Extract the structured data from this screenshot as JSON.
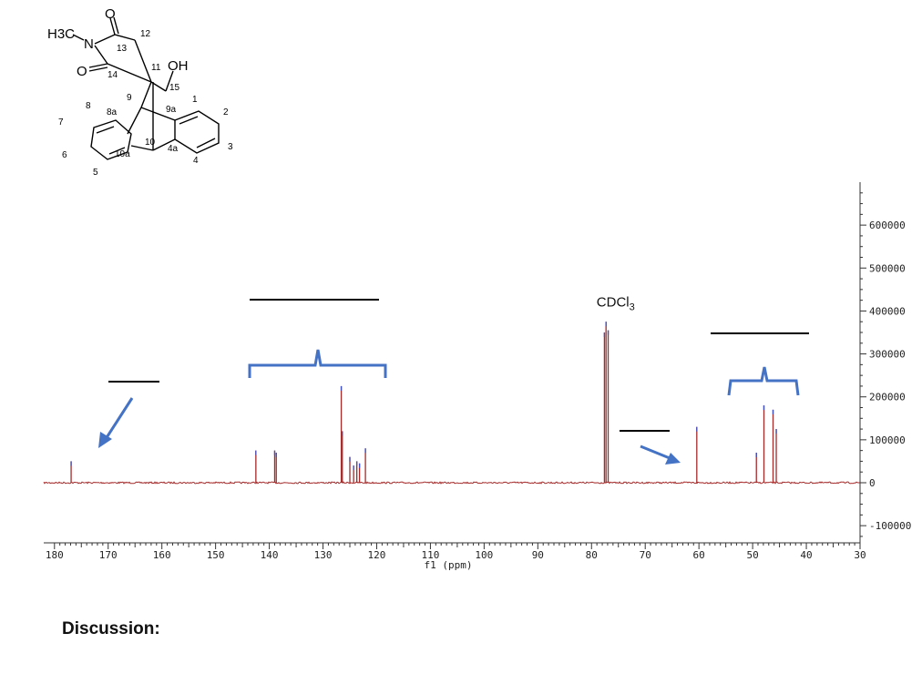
{
  "structure": {
    "methyl": "H3C",
    "nitrogen": "N",
    "oxygen_top": "O",
    "oxygen_left": "O",
    "hydroxyl": "OH",
    "atom_labels": [
      "12",
      "13",
      "11",
      "14",
      "15",
      "1",
      "9",
      "9a",
      "8",
      "8a",
      "2",
      "7",
      "10",
      "4a",
      "3",
      "6",
      "10a",
      "4",
      "5"
    ]
  },
  "chart_data": {
    "type": "line",
    "xlabel": "f1 (ppm)",
    "ylabel": "",
    "xlim": [
      182,
      30
    ],
    "x_reversed": true,
    "ylim": [
      -140000,
      700000
    ],
    "x_ticks": [
      180,
      170,
      160,
      150,
      140,
      130,
      120,
      110,
      100,
      90,
      80,
      70,
      60,
      50,
      40,
      30
    ],
    "x_tick_labels": [
      "180",
      "170",
      "160",
      "150",
      "140",
      "130",
      "120",
      "110",
      "100",
      "90",
      "80",
      "70",
      "60",
      "50",
      "40",
      "30"
    ],
    "y_ticks": [
      600000,
      500000,
      400000,
      300000,
      200000,
      100000,
      0,
      -100000
    ],
    "y_tick_labels": [
      "600000",
      "500000",
      "400000",
      "300000",
      "200000",
      "100000",
      "0",
      "-100000"
    ],
    "peaks": [
      {
        "ppm": 176.9,
        "height": 50000
      },
      {
        "ppm": 142.5,
        "height": 75000
      },
      {
        "ppm": 139.0,
        "height": 75000
      },
      {
        "ppm": 138.7,
        "height": 70000
      },
      {
        "ppm": 126.6,
        "height": 225000
      },
      {
        "ppm": 126.4,
        "height": 120000
      },
      {
        "ppm": 125.0,
        "height": 60000
      },
      {
        "ppm": 124.3,
        "height": 40000
      },
      {
        "ppm": 123.7,
        "height": 50000
      },
      {
        "ppm": 123.2,
        "height": 45000
      },
      {
        "ppm": 122.1,
        "height": 80000
      },
      {
        "ppm": 77.6,
        "height": 350000
      },
      {
        "ppm": 77.3,
        "height": 375000
      },
      {
        "ppm": 76.9,
        "height": 355000
      },
      {
        "ppm": 60.4,
        "height": 130000
      },
      {
        "ppm": 49.3,
        "height": 70000
      },
      {
        "ppm": 47.9,
        "height": 180000
      },
      {
        "ppm": 46.2,
        "height": 170000
      },
      {
        "ppm": 45.6,
        "height": 125000
      }
    ],
    "annotations": [
      {
        "text": "CDCl3",
        "ppm": 75.5,
        "value": 410000
      }
    ],
    "colors": {
      "spectrum": "#a52a2a",
      "bracket": "#4472c4",
      "arrow": "#4472c4",
      "axis": "#333333",
      "peak_tip": "#4050c0"
    }
  },
  "footer": {
    "discussion_label": "Discussion:"
  }
}
